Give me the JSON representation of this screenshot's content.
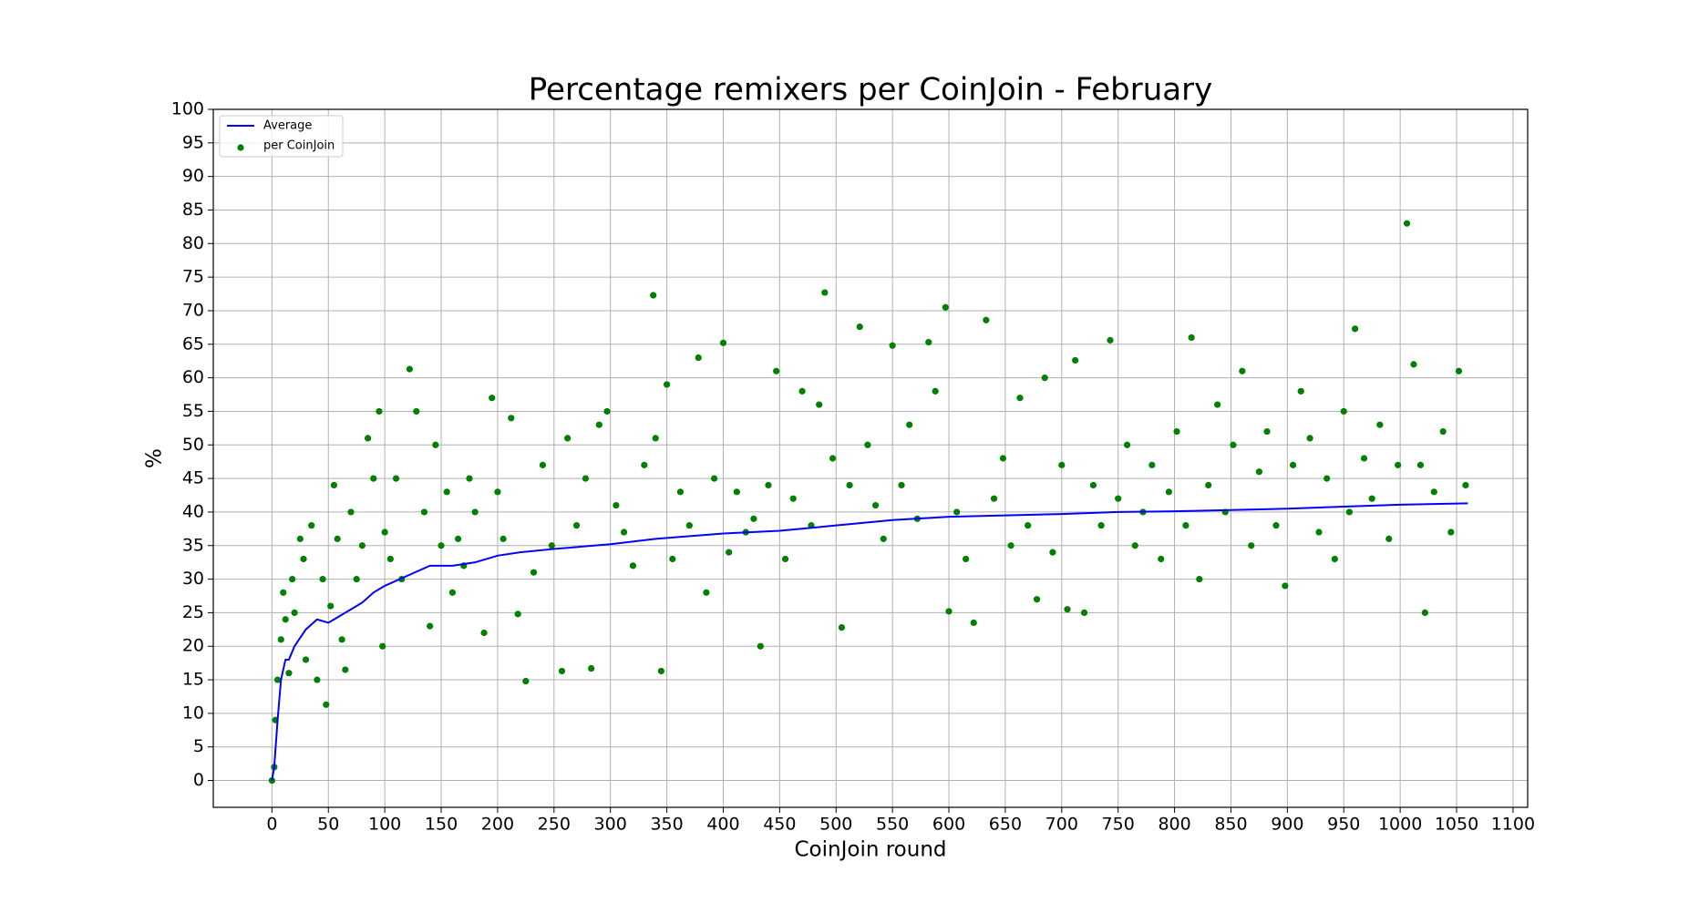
{
  "chart_data": {
    "type": "scatter",
    "title": "Percentage remixers per CoinJoin - February",
    "x_label": "CoinJoin round",
    "y_label": "%",
    "xlim": [
      -52,
      1113
    ],
    "ylim": [
      -4,
      100
    ],
    "xticks": [
      0,
      50,
      100,
      150,
      200,
      250,
      300,
      350,
      400,
      450,
      500,
      550,
      600,
      650,
      700,
      750,
      800,
      850,
      900,
      950,
      1000,
      1050,
      1100
    ],
    "yticks": [
      0,
      5,
      10,
      15,
      20,
      25,
      30,
      35,
      40,
      45,
      50,
      55,
      60,
      65,
      70,
      75,
      80,
      85,
      90,
      95,
      100
    ],
    "grid": true,
    "legend": "upper left",
    "series": [
      {
        "name": "Average",
        "type": "line",
        "color": "#0000ff",
        "x": [
          0,
          2,
          5,
          8,
          12,
          15,
          20,
          30,
          40,
          50,
          60,
          70,
          80,
          90,
          100,
          120,
          140,
          160,
          180,
          200,
          220,
          250,
          300,
          340,
          400,
          450,
          500,
          550,
          600,
          650,
          700,
          750,
          800,
          850,
          900,
          950,
          1000,
          1060
        ],
        "values": [
          0,
          2,
          9,
          15,
          18,
          18,
          20,
          22.5,
          24,
          23.5,
          24.5,
          25.5,
          26.5,
          28,
          29,
          30.5,
          32,
          32,
          32.5,
          33.5,
          34,
          34.5,
          35.2,
          36,
          36.8,
          37.2,
          38,
          38.8,
          39.3,
          39.5,
          39.7,
          40,
          40.1,
          40.3,
          40.5,
          40.8,
          41.1,
          41.3
        ]
      },
      {
        "name": "per CoinJoin",
        "type": "scatter",
        "color": "#008000",
        "x": [
          0,
          2,
          3,
          5,
          8,
          10,
          12,
          15,
          18,
          20,
          25,
          28,
          30,
          35,
          40,
          45,
          48,
          52,
          55,
          58,
          62,
          65,
          70,
          75,
          80,
          85,
          90,
          95,
          98,
          100,
          105,
          110,
          115,
          122,
          128,
          135,
          140,
          145,
          150,
          155,
          160,
          165,
          170,
          175,
          180,
          188,
          195,
          200,
          205,
          212,
          218,
          225,
          232,
          240,
          248,
          257,
          262,
          270,
          278,
          283,
          290,
          297,
          305,
          312,
          320,
          330,
          338,
          340,
          345,
          350,
          355,
          362,
          370,
          378,
          385,
          392,
          400,
          405,
          412,
          420,
          427,
          433,
          440,
          447,
          455,
          462,
          470,
          478,
          485,
          490,
          497,
          505,
          512,
          521,
          528,
          535,
          542,
          550,
          558,
          565,
          572,
          582,
          588,
          597,
          600,
          607,
          615,
          622,
          633,
          640,
          648,
          655,
          663,
          670,
          678,
          685,
          692,
          700,
          705,
          712,
          720,
          728,
          735,
          743,
          750,
          758,
          765,
          772,
          780,
          788,
          795,
          802,
          810,
          815,
          822,
          830,
          838,
          845,
          852,
          860,
          868,
          875,
          882,
          890,
          898,
          905,
          912,
          920,
          928,
          935,
          942,
          950,
          955,
          960,
          968,
          975,
          982,
          990,
          998,
          1006,
          1012,
          1018,
          1022,
          1030,
          1038,
          1045,
          1052,
          1058
        ],
        "values": [
          0,
          2,
          9,
          15,
          21,
          28,
          24,
          16,
          30,
          25,
          36,
          33,
          18,
          38,
          15,
          30,
          11.3,
          26,
          44,
          36,
          21,
          16.5,
          40,
          30,
          35,
          51,
          45,
          55,
          20,
          37,
          33,
          45,
          30,
          61.3,
          55,
          40,
          23,
          50,
          35,
          43,
          28,
          36,
          32,
          45,
          40,
          22,
          57,
          43,
          36,
          54,
          24.8,
          14.8,
          31,
          47,
          35,
          16.3,
          51,
          38,
          45,
          16.7,
          53,
          55,
          41,
          37,
          32,
          47,
          72.3,
          51,
          16.3,
          59,
          33,
          43,
          38,
          63,
          28,
          45,
          65.2,
          34,
          43,
          37,
          39,
          20,
          44,
          61,
          33,
          42,
          58,
          38,
          56,
          72.7,
          48,
          22.8,
          44,
          67.6,
          50,
          41,
          36,
          64.8,
          44,
          53,
          39,
          65.3,
          58,
          70.5,
          25.2,
          40,
          33,
          23.5,
          68.6,
          42,
          48,
          35,
          57,
          38,
          27,
          60,
          34,
          47,
          25.5,
          62.6,
          25,
          44,
          38,
          65.6,
          42,
          50,
          35,
          40,
          47,
          33,
          43,
          52,
          38,
          66,
          30,
          44,
          56,
          40,
          50,
          61,
          35,
          46,
          52,
          38,
          29,
          47,
          58,
          51,
          37,
          45,
          33,
          55,
          40,
          67.3,
          48,
          42,
          53,
          36,
          47,
          83,
          62,
          47,
          25,
          43,
          52,
          37,
          61,
          44
        ]
      }
    ]
  }
}
